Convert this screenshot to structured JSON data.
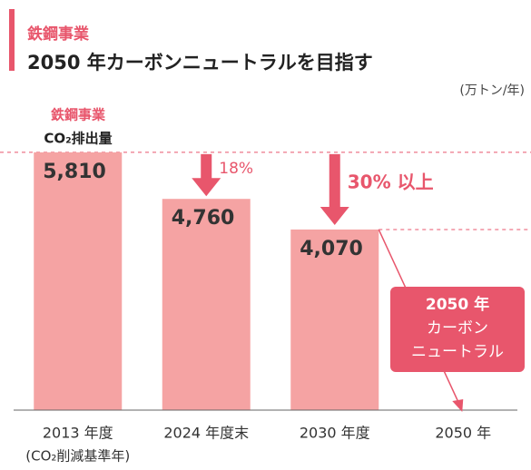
{
  "chart_data": {
    "type": "bar",
    "section": "鉄鋼事業",
    "title": "2050 年カーボンニュートラルを目指す",
    "unit": "(万トン/年)",
    "ylabel_lines": [
      "鉄鋼事業",
      "CO₂排出量"
    ],
    "categories": [
      "2013 年度",
      "2024 年度末",
      "2030 年度",
      "2050 年"
    ],
    "category_note": "(CO₂削減基準年)",
    "values": [
      5810,
      4760,
      4070,
      null
    ],
    "value_labels": [
      "5,810",
      "4,760",
      "4,070",
      null
    ],
    "color": "#f5a3a3",
    "accent": "#e8566c",
    "ylim": [
      0,
      6400
    ],
    "reductions": [
      "18%",
      "30% 以上"
    ],
    "goal_lines": [
      "2050 年",
      "カーボン",
      "ニュートラル"
    ]
  }
}
